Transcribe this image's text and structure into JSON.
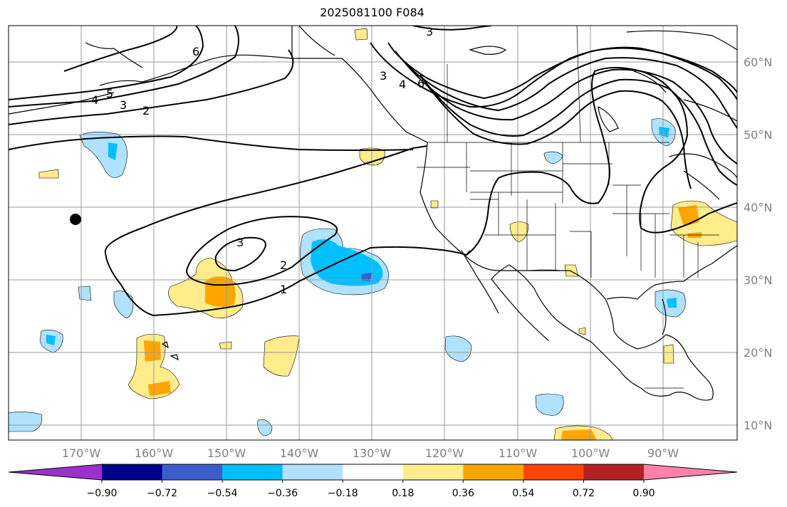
{
  "title": "2025081100 F084",
  "latitude_labels": [
    "60°N",
    "50°N",
    "40°N",
    "30°N",
    "20°N",
    "10°N"
  ],
  "longitude_labels": [
    "170°W",
    "160°W",
    "150°W",
    "140°W",
    "130°W",
    "120°W",
    "110°W",
    "100°W",
    "90°W"
  ],
  "colorbar": {
    "ticks": [
      "−0.90",
      "−0.72",
      "−0.54",
      "−0.36",
      "−0.18",
      "0.18",
      "0.36",
      "0.54",
      "0.72",
      "0.90"
    ],
    "colors": [
      "#9932cc",
      "#00008b",
      "#3a5fcd",
      "#00bfff",
      "#b0e2ff",
      "#ffffff",
      "#ffec8b",
      "#ffa500",
      "#ff4500",
      "#b22222",
      "#ff82ab"
    ]
  },
  "contour_labels": [
    "1",
    "2",
    "3",
    "2",
    "3",
    "4",
    "5",
    "6",
    "3",
    "4",
    "6",
    "3"
  ],
  "colors": {
    "grid": "#999999",
    "coast": "#000000",
    "contour": "#000000"
  }
}
